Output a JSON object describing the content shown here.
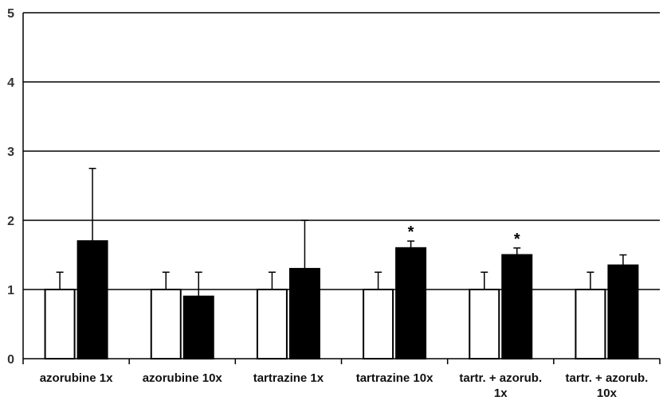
{
  "chart_data": {
    "type": "bar",
    "title": "",
    "xlabel": "",
    "ylabel": "",
    "ylim": [
      0,
      5
    ],
    "yticks": [
      0,
      1,
      2,
      3,
      4,
      5
    ],
    "grid": true,
    "categories": [
      [
        "azorubine 1x"
      ],
      [
        "azorubine 10x"
      ],
      [
        "tartrazine 1x"
      ],
      [
        "tartrazine 10x"
      ],
      [
        "tartr. + azorub.",
        "1x"
      ],
      [
        "tartr. + azorub.",
        "10x"
      ]
    ],
    "series": [
      {
        "color": "#ffffff",
        "values": [
          1.0,
          1.0,
          1.0,
          1.0,
          1.0,
          1.0
        ],
        "errors": [
          0.25,
          0.25,
          0.25,
          0.25,
          0.25,
          0.25
        ]
      },
      {
        "color": "#000000",
        "values": [
          1.7,
          0.9,
          1.3,
          1.6,
          1.5,
          1.35
        ],
        "errors": [
          1.05,
          0.35,
          0.7,
          0.1,
          0.1,
          0.15
        ],
        "annotations": [
          "",
          "",
          "",
          "*",
          "*",
          ""
        ]
      }
    ]
  }
}
